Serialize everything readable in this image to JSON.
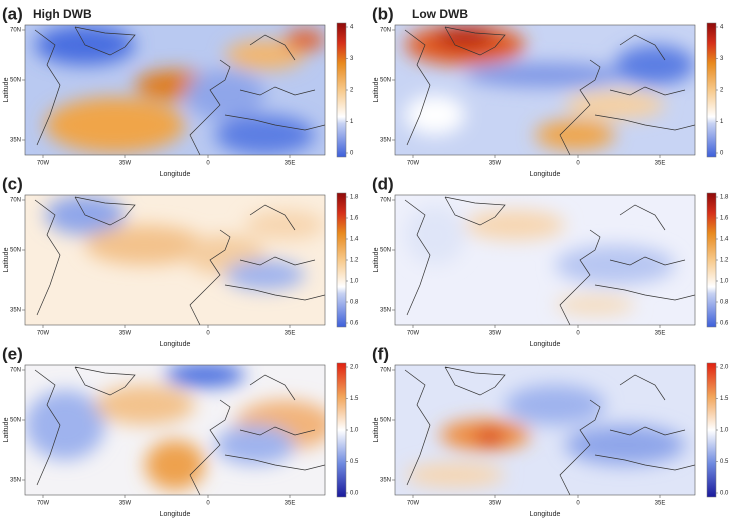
{
  "panels": [
    {
      "label": "(a)",
      "title": "High DWB",
      "x_label": "Longitude",
      "y_label": "Latitude",
      "x_ticks": [
        "70W",
        "35W",
        "0",
        "35E"
      ],
      "y_ticks": [
        "70N",
        "50N",
        "35N"
      ],
      "colorbar_ticks": [
        "4",
        "3",
        "2",
        "1",
        "0"
      ]
    },
    {
      "label": "(b)",
      "title": "Low DWB",
      "x_label": "Longitude",
      "y_label": "Latitude",
      "x_ticks": [
        "70W",
        "35W",
        "0",
        "35E"
      ],
      "y_ticks": [
        "70N",
        "50N",
        "35N"
      ],
      "colorbar_ticks": [
        "4",
        "3",
        "2",
        "1",
        "0"
      ]
    },
    {
      "label": "(c)",
      "x_label": "Longitude",
      "y_label": "Latitude",
      "x_ticks": [
        "70W",
        "35W",
        "0",
        "35E"
      ],
      "y_ticks": [
        "70N",
        "50N",
        "35N"
      ],
      "colorbar_ticks": [
        "1.8",
        "1.6",
        "1.4",
        "1.2",
        "1.0",
        "0.8",
        "0.6"
      ]
    },
    {
      "label": "(d)",
      "x_label": "Longitude",
      "y_label": "Latitude",
      "x_ticks": [
        "70W",
        "35W",
        "0",
        "35E"
      ],
      "y_ticks": [
        "70N",
        "50N",
        "35N"
      ],
      "colorbar_ticks": [
        "1.8",
        "1.6",
        "1.4",
        "1.2",
        "1.0",
        "0.8",
        "0.6"
      ]
    },
    {
      "label": "(e)",
      "x_label": "Longitude",
      "y_label": "Latitude",
      "x_ticks": [
        "70W",
        "35W",
        "0",
        "35E"
      ],
      "y_ticks": [
        "70N",
        "50N",
        "35N"
      ],
      "colorbar_ticks": [
        "2.0",
        "1.5",
        "1.0",
        "0.5",
        "0.0"
      ]
    },
    {
      "label": "(f)",
      "x_label": "Longitude",
      "y_label": "Latitude",
      "x_ticks": [
        "70W",
        "35W",
        "0",
        "35E"
      ],
      "y_ticks": [
        "70N",
        "50N",
        "35N"
      ],
      "colorbar_ticks": [
        "2.0",
        "1.5",
        "1.0",
        "0.5",
        "0.0"
      ]
    }
  ]
}
